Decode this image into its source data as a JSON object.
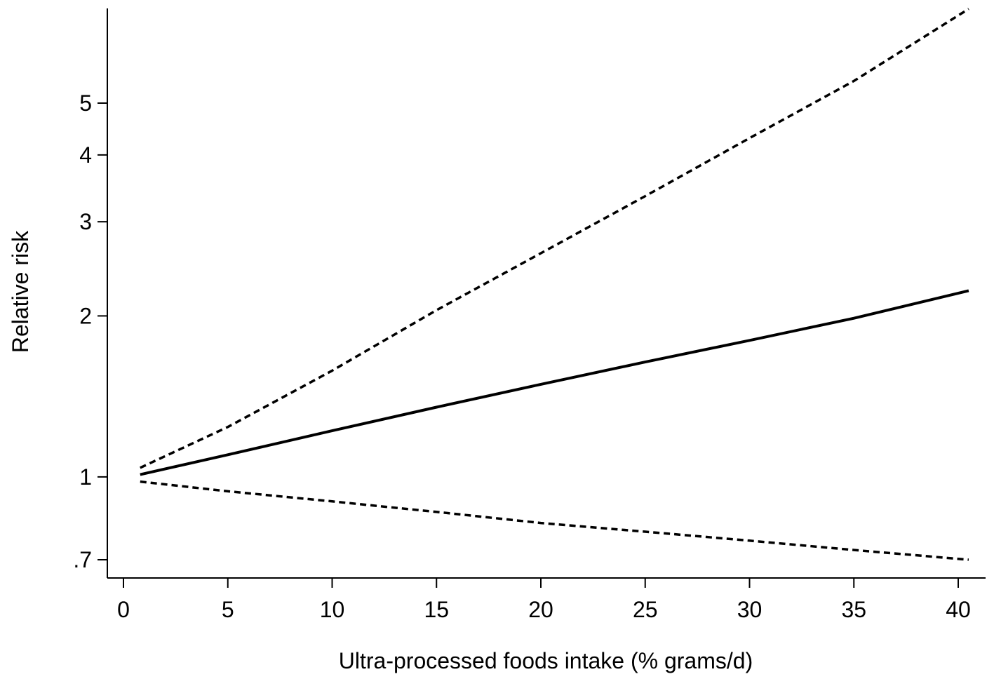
{
  "chart_data": {
    "type": "line",
    "title": "",
    "xlabel": "Ultra-processed foods intake (% grams/d)",
    "ylabel": "Relative risk",
    "xlim": [
      0,
      41
    ],
    "ylim": [
      0.66,
      7.9
    ],
    "yscale": "log",
    "x_ticks": [
      0,
      5,
      10,
      15,
      20,
      25,
      30,
      35,
      40
    ],
    "x_tick_labels": [
      "0",
      "5",
      "10",
      "15",
      "20",
      "25",
      "30",
      "35",
      "40"
    ],
    "y_ticks": [
      0.7,
      1,
      2,
      3,
      4,
      5
    ],
    "y_tick_labels": [
      ".7",
      "1",
      "2",
      "3",
      "4",
      "5"
    ],
    "grid": false,
    "legend": "none",
    "series": [
      {
        "style": "solid",
        "color": "#000000",
        "x": [
          0.8,
          5,
          10,
          15,
          20,
          25,
          30,
          35,
          40.5
        ],
        "y": [
          1.01,
          1.1,
          1.22,
          1.35,
          1.49,
          1.64,
          1.8,
          1.98,
          2.23
        ]
      },
      {
        "style": "dashed-upper",
        "color": "#000000",
        "x": [
          0.8,
          5,
          10,
          15,
          20,
          25,
          30,
          35,
          40.5
        ],
        "y": [
          1.04,
          1.24,
          1.58,
          2.05,
          2.62,
          3.35,
          4.3,
          5.5,
          7.5
        ]
      },
      {
        "style": "dashed-lower",
        "color": "#000000",
        "x": [
          0.8,
          5,
          10,
          15,
          20,
          25,
          30,
          35,
          40.5
        ],
        "y": [
          0.98,
          0.94,
          0.9,
          0.86,
          0.82,
          0.79,
          0.76,
          0.73,
          0.7
        ]
      }
    ]
  }
}
